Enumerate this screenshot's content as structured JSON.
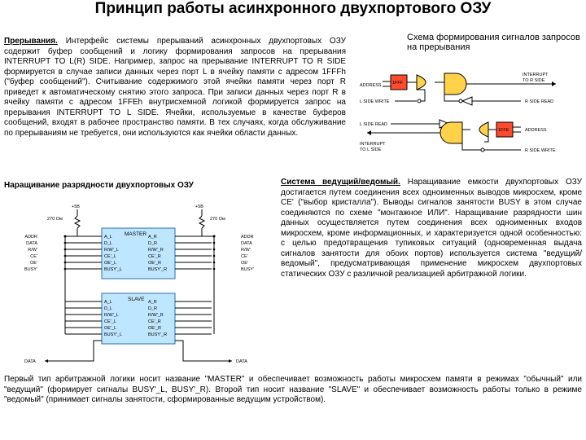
{
  "title": "Принцип работы асинхронного двухпортового ОЗУ",
  "interrupts": {
    "heading": "Прерывания.",
    "text": " Интерфейс системы прерываний асинхронных двухпортовых ОЗУ содержит буфер сообщений и логику формирования запросов на прерывания INTERRUPT TO L(R) SIDE. Например, запрос на прерывание INTERRUPT TO R SIDE формируется в случае записи данных через порт L в ячейку памяти с адресом 1FFFh (\"буфер сообщений\"). Считывание содержимого этой ячейки памяти через порт R приведет к автоматическому снятию этого запроса. При записи данных через порт R в ячейку памяти с адресом 1FFEh внутрисхемной логикой формируется запрос на прерывания INTERRUPT TO L SIDE. Ячейки, используемые в качестве буферов сообщений, входят в рабочее пространство памяти. В тех случаях, когда обслуживание по прерываниям не требуется, они используются как ячейки области данных."
  },
  "scheme_title": "Схема формирования сигналов запросов на прерывания",
  "grow_title": "Наращивание разрядности двухпортовых ОЗУ",
  "master": {
    "heading": "Система ведущий/ведомый.",
    "text": " Наращивание емкости двухпортовых ОЗУ достигается путем соединения всех одноименных выводов микросхем, кроме CE' (\"выбор кристалла\"). Выводы сигналов занятости BUSY в этом случае соединяются по схеме \"монтажное ИЛИ\". Наращивание разрядности шин данных осуществляется путем соединения всех одноименных входов микросхем, кроме информационных, и характеризуется одной особенностью: с целью предотвращения тупиковых ситуаций (одновременная выдача сигналов занятости для обоих портов) используется система \"ведущий/ведомый\", предусматривающая применение микросхем двухпортовых статических ОЗУ с различной реализацией арбитражной логики."
  },
  "bottom": "Первый тип арбитражной логики носит название \"MASTER\" и обеспечивает возможность работы микросхем памяти в режимах \"обычный\" или \"ведущий\" (формирует сигналы BUSY'_L, BUSY'_R). Второй тип носит название \"SLAVE\" и обеспечивает возможность работы только в режиме \"ведомый\" (принимает сигналы занятости, сформированные ведущим устройством).",
  "interrupt_diagram": {
    "background": "#ffffff",
    "wire_color": "#000000",
    "gate_fill": "#ffd24a",
    "gate_stroke": "#000000",
    "latch_fill": "#ff4a2e",
    "inverter_fill": "#ffffff",
    "labels": {
      "address_l": "ADDRESS",
      "l_write": "L SIDE WRITE",
      "l_read": "L SIDE READ",
      "int_to_l": "INTERRUPT\nTO L SIDE",
      "int_to_r": "INTERRUPT\nTO R SIDE",
      "r_read": "R SIDE READ",
      "address_r": "ADDRESS",
      "r_write": "R SIDE WRITE",
      "val1": "1FFF",
      "val2": "1FFE"
    }
  },
  "master_diagram": {
    "background": "#ffffff",
    "wire_color": "#000000",
    "chip_fill": "#bfe6ff",
    "chip_stroke": "#2a6fb0",
    "resistor_label": "270 Ом",
    "vcc_label": "+5В",
    "chips": [
      {
        "name": "MASTER",
        "pins_l": [
          "A_L",
          "D_L",
          "R/W'_L",
          "CE'_L",
          "OE'_L",
          "BUSY'_L"
        ],
        "pins_r": [
          "A_R",
          "D_R",
          "R/W'_R",
          "CE'_R",
          "OE'_R",
          "BUSY'_R"
        ]
      },
      {
        "name": "SLAVE",
        "pins_l": [
          "A_L",
          "D_L",
          "R/W'_L",
          "CE'_L",
          "OE'_L",
          "BUSY'_L"
        ],
        "pins_r": [
          "A_R",
          "D_R",
          "R/W'_R",
          "CE'_R",
          "OE'_R",
          "BUSY'_R"
        ]
      }
    ],
    "bus_labels_l": [
      "ADDR",
      "DATA",
      "R/W'",
      "CE'",
      "OE'",
      "BUSY'"
    ],
    "bus_labels_r": [
      "ADDR",
      "DATA",
      "R/W'",
      "CE'",
      "OE'",
      "BUSY'"
    ],
    "data_label": "DATA"
  }
}
